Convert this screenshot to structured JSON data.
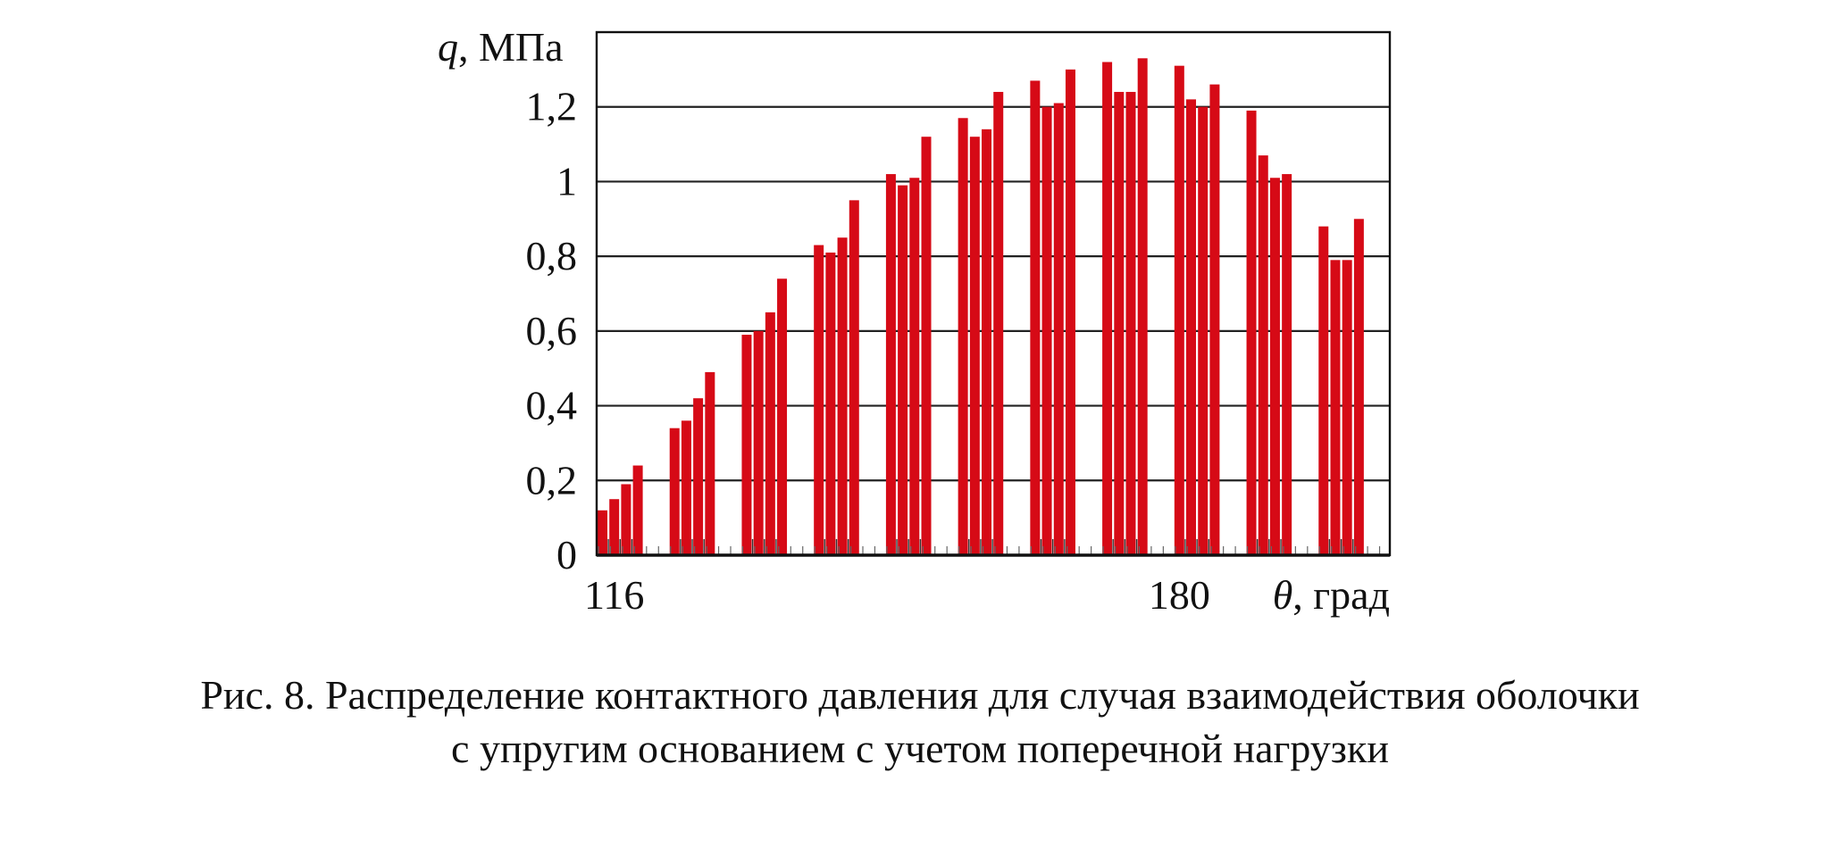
{
  "chart_data": {
    "type": "bar",
    "title": "",
    "xlabel_symbol": "θ",
    "xlabel_unit": ", град",
    "ylabel_symbol": "q",
    "ylabel_unit": ", МПа",
    "ylim": [
      0,
      1.4
    ],
    "yticks": [
      {
        "value": 0,
        "label": "0"
      },
      {
        "value": 0.2,
        "label": "0,2"
      },
      {
        "value": 0.4,
        "label": "0,4"
      },
      {
        "value": 0.6,
        "label": "0,6"
      },
      {
        "value": 0.8,
        "label": "0,8"
      },
      {
        "value": 1.0,
        "label": "1"
      },
      {
        "value": 1.2,
        "label": "1,2"
      }
    ],
    "xtick_labels": [
      {
        "index": 1,
        "label": "116"
      },
      {
        "index": 32,
        "label": "180"
      }
    ],
    "grid": true,
    "bar_color": "#d60a16",
    "groups": [
      [
        0.12,
        0.15,
        0.19,
        0.24
      ],
      [
        0.34,
        0.36,
        0.42,
        0.49
      ],
      [
        0.59,
        0.6,
        0.65,
        0.74
      ],
      [
        0.83,
        0.81,
        0.85,
        0.95
      ],
      [
        1.02,
        0.99,
        1.01,
        1.12
      ],
      [
        1.17,
        1.12,
        1.14,
        1.24
      ],
      [
        1.27,
        1.2,
        1.21,
        1.3
      ],
      [
        1.32,
        1.24,
        1.24,
        1.33
      ],
      [
        1.31,
        1.22,
        1.2,
        1.26
      ],
      [
        1.19,
        1.07,
        1.01,
        1.02
      ],
      [
        0.88,
        0.79,
        0.79,
        0.9
      ]
    ]
  },
  "caption": {
    "line1": "Рис. 8. Распределение контактного давления для случая взаимодействия оболочки",
    "line2": "с упругим основанием с учетом поперечной нагрузки"
  }
}
